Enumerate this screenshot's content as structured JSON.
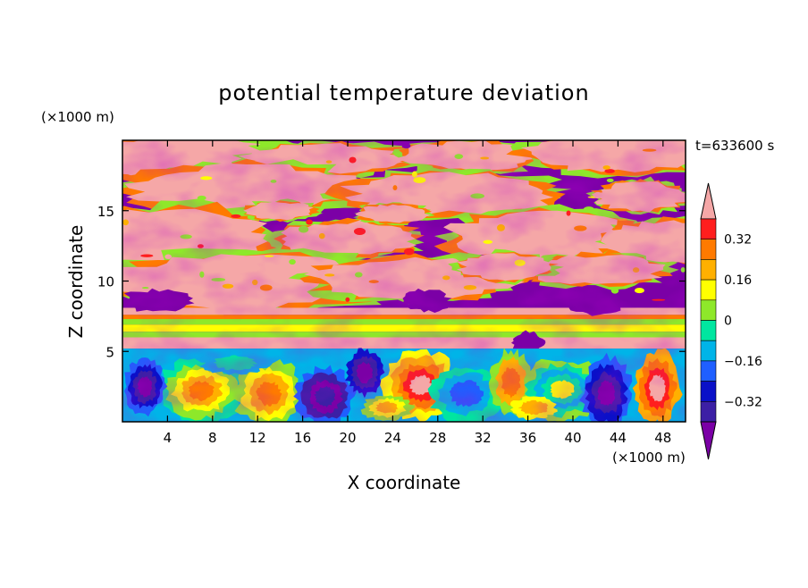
{
  "chart_data": {
    "type": "heatmap",
    "title": "potential temperature deviation",
    "xlabel": "X coordinate",
    "ylabel": "Z coordinate",
    "x_unit": "(×1000 m)",
    "y_unit": "(×1000 m)",
    "time_label": "t=633600 s",
    "xlim": [
      0,
      50
    ],
    "ylim": [
      0,
      20
    ],
    "x_ticks": [
      4,
      8,
      12,
      16,
      20,
      24,
      28,
      32,
      36,
      40,
      44,
      48
    ],
    "y_ticks": [
      5,
      10,
      15
    ],
    "colorbar": {
      "levels": [
        -0.4,
        -0.32,
        -0.24,
        -0.16,
        -0.08,
        0,
        0.08,
        0.16,
        0.24,
        0.32,
        0.4
      ],
      "tick_labels": [
        "0.32",
        "0.16",
        "0",
        "−0.16",
        "−0.32"
      ],
      "tick_values": [
        0.32,
        0.16,
        0,
        -0.16,
        -0.32
      ],
      "colors": [
        "#7b00a6",
        "#3c1fa5",
        "#0a10c8",
        "#1f5fff",
        "#00b4e8",
        "#00e6a0",
        "#8ee82a",
        "#ffff00",
        "#ffb000",
        "#ff7a00",
        "#ff1e1e",
        "#f5a7a7"
      ],
      "extend": "both"
    },
    "regions": [
      {
        "z_range": [
          0,
          5.5
        ],
        "pattern": "convective cells",
        "dominant_values": [
          -0.4,
          0.3
        ]
      },
      {
        "z_range": [
          5.5,
          8
        ],
        "pattern": "horizontal bands",
        "dominant_values": [
          0.4,
          0.1,
          -0.05,
          0.1,
          0.4
        ]
      },
      {
        "z_range": [
          8,
          20
        ],
        "pattern": "layered blobs",
        "dominant_values": [
          0.4,
          -0.4
        ]
      }
    ]
  }
}
